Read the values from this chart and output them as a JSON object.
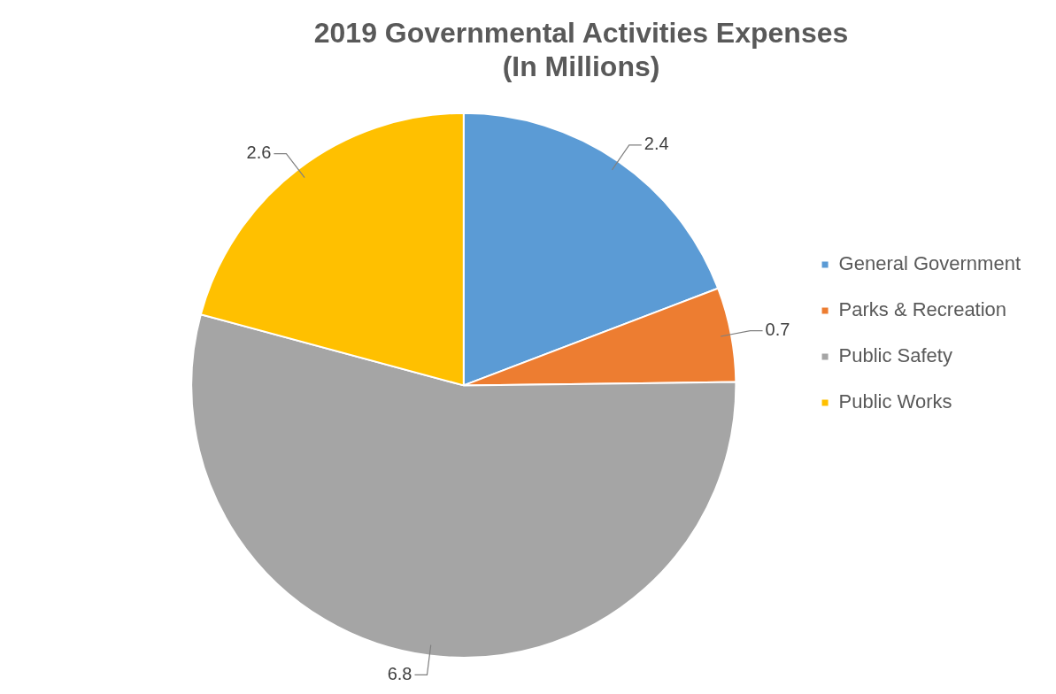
{
  "chart_data": {
    "type": "pie",
    "title": [
      "2019 Governmental Activities Expenses",
      "(In Millions)"
    ],
    "categories": [
      "General Government",
      "Parks & Recreation",
      "Public Safety",
      "Public Works"
    ],
    "values": [
      2.4,
      0.7,
      6.8,
      2.6
    ],
    "colors": [
      "#5b9bd5",
      "#ed7d31",
      "#a5a5a5",
      "#ffc000"
    ],
    "data_labels": true,
    "legend": "right"
  }
}
